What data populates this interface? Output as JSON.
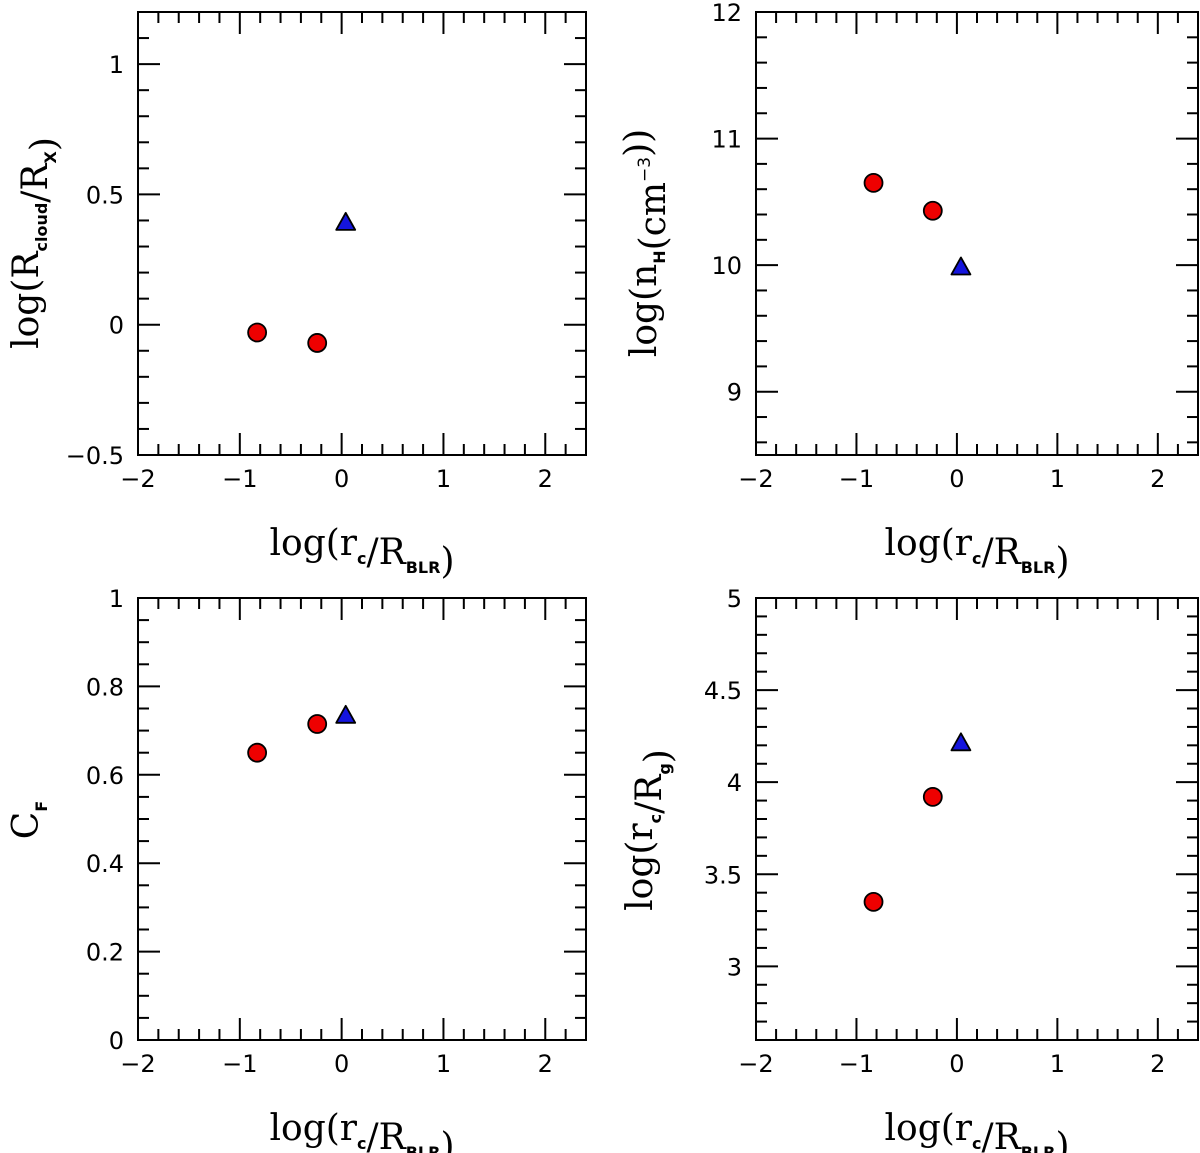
{
  "colors": {
    "circle": "#ee0000",
    "triangle": "#1515dd",
    "axis": "#000000"
  },
  "chart_data": [
    {
      "type": "scatter",
      "panel": "top-left",
      "xlabel": "log(r_c/R_BLR)",
      "ylabel": "log(R_cloud/R_X)",
      "xlim": [
        -2,
        2.4
      ],
      "ylim": [
        -0.5,
        1.2
      ],
      "xticks": [
        -2,
        -1,
        0,
        1,
        2
      ],
      "xtick_labels": [
        "−2",
        "−1",
        "0",
        "1",
        "2"
      ],
      "yticks": [
        -0.5,
        0,
        0.5,
        1
      ],
      "ytick_labels": [
        "−0.5",
        "0",
        "0.5",
        "1"
      ],
      "x_minor": 0.2,
      "y_minor": 0.1,
      "series": [
        {
          "name": "circles",
          "marker": "circle",
          "x": [
            -0.83,
            -0.24
          ],
          "y": [
            -0.03,
            -0.07
          ]
        },
        {
          "name": "triangle",
          "marker": "triangle",
          "x": [
            0.04
          ],
          "y": [
            0.39
          ]
        }
      ]
    },
    {
      "type": "scatter",
      "panel": "top-right",
      "xlabel": "log(r_c/R_BLR)",
      "ylabel": "log(n_H(cm^-3))",
      "xlim": [
        -2,
        2.4
      ],
      "ylim": [
        8.5,
        12
      ],
      "xticks": [
        -2,
        -1,
        0,
        1,
        2
      ],
      "xtick_labels": [
        "−2",
        "−1",
        "0",
        "1",
        "2"
      ],
      "yticks": [
        9,
        10,
        11,
        12
      ],
      "ytick_labels": [
        "9",
        "10",
        "11",
        "12"
      ],
      "x_minor": 0.2,
      "y_minor": 0.2,
      "series": [
        {
          "name": "circles",
          "marker": "circle",
          "x": [
            -0.83,
            -0.24
          ],
          "y": [
            10.65,
            10.43
          ]
        },
        {
          "name": "triangle",
          "marker": "triangle",
          "x": [
            0.04
          ],
          "y": [
            9.98
          ]
        }
      ]
    },
    {
      "type": "scatter",
      "panel": "bottom-left",
      "xlabel": "log(r_c/R_BLR)",
      "ylabel": "C_F",
      "xlim": [
        -2,
        2.4
      ],
      "ylim": [
        0,
        1
      ],
      "xticks": [
        -2,
        -1,
        0,
        1,
        2
      ],
      "xtick_labels": [
        "−2",
        "−1",
        "0",
        "1",
        "2"
      ],
      "yticks": [
        0,
        0.2,
        0.4,
        0.6,
        0.8,
        1
      ],
      "ytick_labels": [
        "0",
        "0.2",
        "0.4",
        "0.6",
        "0.8",
        "1"
      ],
      "x_minor": 0.2,
      "y_minor": 0.05,
      "series": [
        {
          "name": "circles",
          "marker": "circle",
          "x": [
            -0.83,
            -0.24
          ],
          "y": [
            0.65,
            0.715
          ]
        },
        {
          "name": "triangle",
          "marker": "triangle",
          "x": [
            0.04
          ],
          "y": [
            0.733
          ]
        }
      ]
    },
    {
      "type": "scatter",
      "panel": "bottom-right",
      "xlabel": "log(r_c/R_BLR)",
      "ylabel": "log(r_c/R_g)",
      "xlim": [
        -2,
        2.4
      ],
      "ylim": [
        2.6,
        5
      ],
      "xticks": [
        -2,
        -1,
        0,
        1,
        2
      ],
      "xtick_labels": [
        "−2",
        "−1",
        "0",
        "1",
        "2"
      ],
      "yticks": [
        3,
        3.5,
        4,
        4.5,
        5
      ],
      "ytick_labels": [
        "3",
        "3.5",
        "4",
        "4.5",
        "5"
      ],
      "x_minor": 0.2,
      "y_minor": 0.1,
      "series": [
        {
          "name": "circles",
          "marker": "circle",
          "x": [
            -0.83,
            -0.24
          ],
          "y": [
            3.35,
            3.92
          ]
        },
        {
          "name": "triangle",
          "marker": "triangle",
          "x": [
            0.04
          ],
          "y": [
            4.21
          ]
        }
      ]
    }
  ]
}
